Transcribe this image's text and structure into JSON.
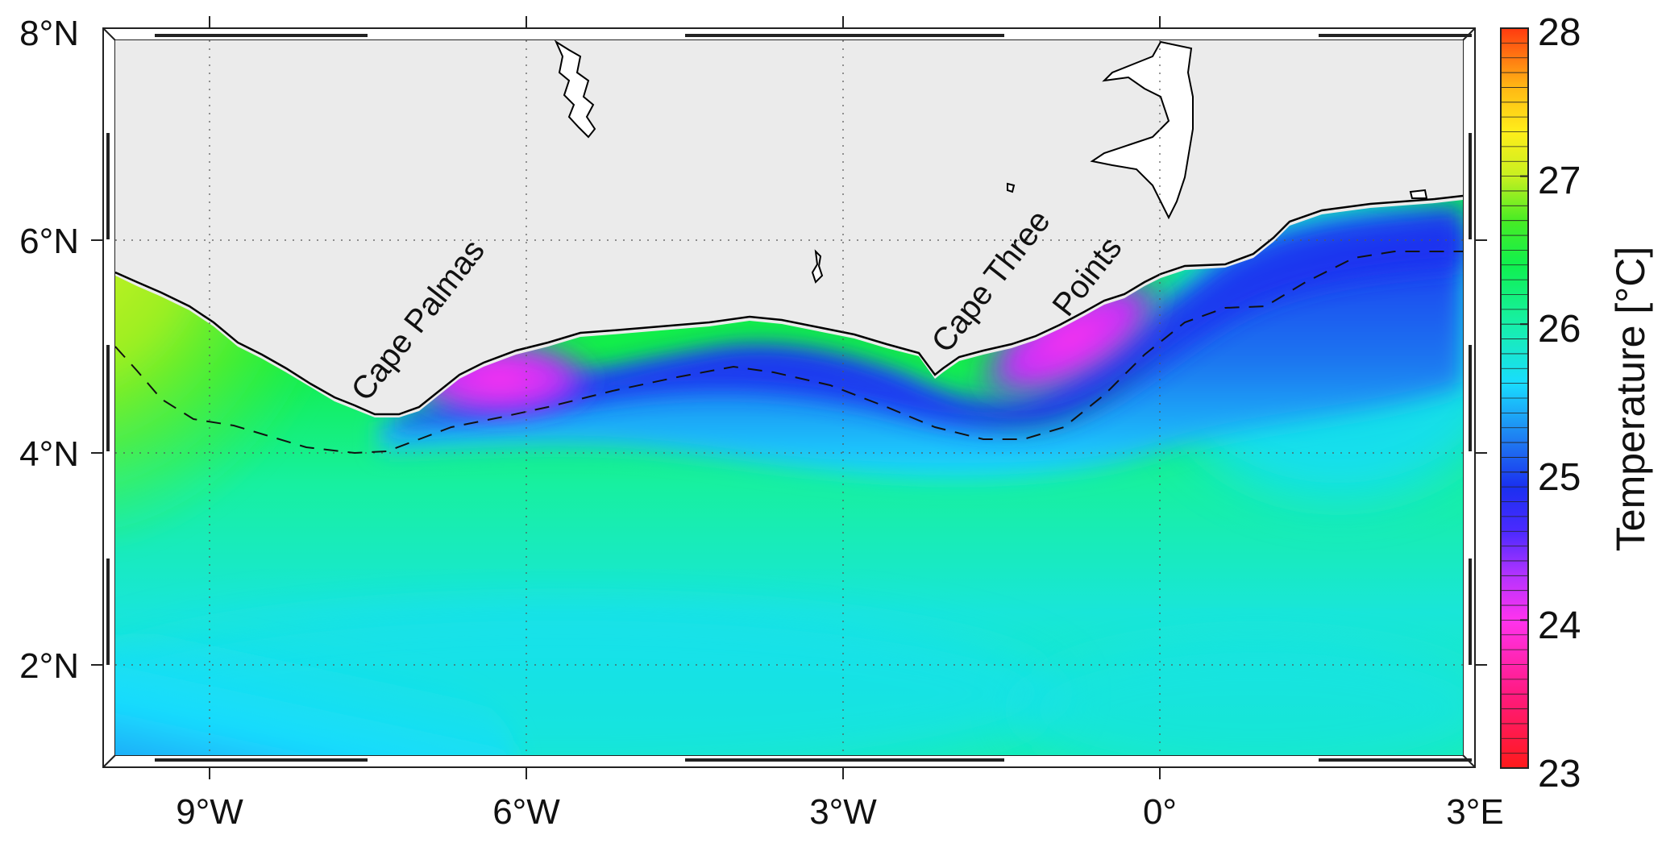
{
  "map": {
    "lat_labels": [
      {
        "value": 8,
        "text": "8°N"
      },
      {
        "value": 6,
        "text": "6°N"
      },
      {
        "value": 4,
        "text": "4°N"
      },
      {
        "value": 2,
        "text": "2°N"
      }
    ],
    "lon_labels": [
      {
        "value": -9,
        "text": "9°W"
      },
      {
        "value": -6,
        "text": "6°W"
      },
      {
        "value": -3,
        "text": "3°W"
      },
      {
        "value": 0,
        "text": "0°"
      },
      {
        "value": 3,
        "text": "3°E"
      }
    ],
    "extent": {
      "lon": [
        -10,
        3
      ],
      "lat": [
        1,
        8
      ]
    },
    "place_labels": [
      {
        "lines": [
          "Cape Palmas"
        ]
      },
      {
        "lines": [
          "Cape Three",
          "Points"
        ]
      }
    ],
    "colors": {
      "land": "#ebebeb",
      "coast": "#000000"
    }
  },
  "colorbar": {
    "title": "Temperature [°C]",
    "min": 23,
    "max": 28,
    "tick_labels": [
      "28",
      "27",
      "26",
      "25",
      "24",
      "23"
    ],
    "stops": [
      {
        "value": 23.0,
        "color": "#ff1a1a"
      },
      {
        "value": 23.5,
        "color": "#ff1a80"
      },
      {
        "value": 24.0,
        "color": "#ff33ee"
      },
      {
        "value": 24.3,
        "color": "#b433ff"
      },
      {
        "value": 24.6,
        "color": "#4b2aff"
      },
      {
        "value": 24.9,
        "color": "#1a30f0"
      },
      {
        "value": 25.2,
        "color": "#1f78f0"
      },
      {
        "value": 25.6,
        "color": "#19dcff"
      },
      {
        "value": 26.0,
        "color": "#17f0a8"
      },
      {
        "value": 26.4,
        "color": "#10f04e"
      },
      {
        "value": 26.7,
        "color": "#48ec24"
      },
      {
        "value": 27.0,
        "color": "#c8f020"
      },
      {
        "value": 27.3,
        "color": "#ffee1a"
      },
      {
        "value": 27.6,
        "color": "#ffb814"
      },
      {
        "value": 28.0,
        "color": "#ff3a10"
      }
    ]
  }
}
